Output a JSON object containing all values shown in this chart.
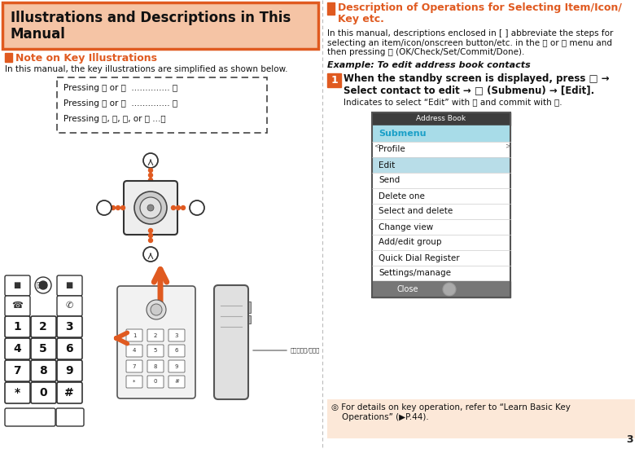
{
  "title_line1": "Illustrations and Descriptions in This",
  "title_line2": "Manual",
  "title_bg": "#f5c4a5",
  "title_border": "#e05a20",
  "left_heading": "Note on Key Illustrations",
  "left_heading_color": "#e05a20",
  "left_body": "In this manual, the key illustrations are simplified as shown below.",
  "dbox_line1": "Pressing Ⓘ or Ⓙ  .............. Ⓘ",
  "dbox_line2": "Pressing Ⓖ or Ⓗ  .............. Ⓖ",
  "dbox_line3": "Pressing Ⓘ, Ⓙ, Ⓖ, or Ⓗ ...Ⓘ",
  "right_heading1": "Description of Operations for Selecting Item/Icon/",
  "right_heading2": "Key etc.",
  "right_heading_color": "#e05a20",
  "right_body": "In this manual, descriptions enclosed in [ ] abbreviate the steps for\nselecting an item/icon/onscreen button/etc. in the ⓕ or ⓕ menu and\nthen pressing ⓕ (OK/Check/Set/Commit/Done).",
  "example_label": "Example: To edit address book contacts",
  "step1_text1": "When the standby screen is displayed, press □ →",
  "step1_text2": "Select contact to edit → □ (Submenu) → [Edit].",
  "step1_sub": "Indicates to select “Edit” with ⓕ and commit with ⓕ.",
  "menu_title": "Address Book",
  "menu_submenu": "Submenu",
  "menu_submenu_color": "#1ba0c8",
  "menu_submenu_bg": "#a8dce8",
  "menu_items": [
    "Profile",
    "Edit",
    "Send",
    "Delete one",
    "Select and delete",
    "Change view",
    "Add/edit group",
    "Quick Dial Register",
    "Settings/manage"
  ],
  "menu_edit_bg": "#b8dde8",
  "menu_close_bg": "#777777",
  "note_bg": "#fce8d8",
  "note_text": "◎ For details on key operation, refer to “Learn Basic Key\n    Operations” (▶P.44).",
  "page_number": "3",
  "bg_color": "#ffffff",
  "divider_color": "#bbbbbb",
  "orange": "#e05a20",
  "dark": "#222222"
}
